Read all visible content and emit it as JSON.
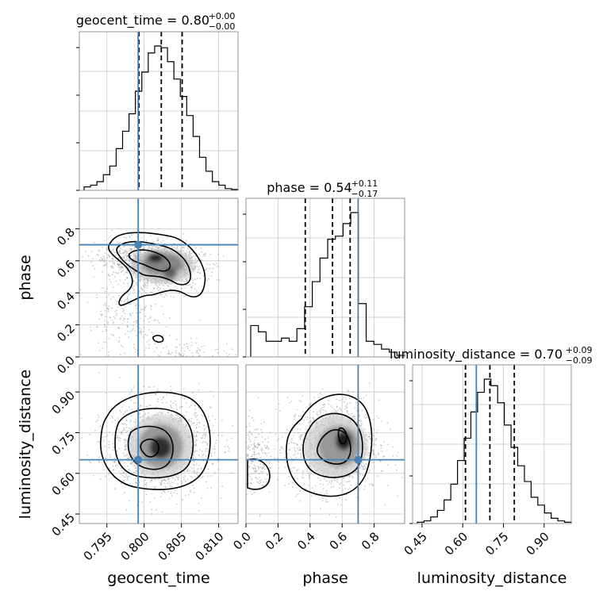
{
  "chart_data": {
    "type": "corner",
    "parameters": [
      "geocent_time",
      "phase",
      "luminosity_distance"
    ],
    "truths": [
      0.7992,
      0.7,
      0.65
    ],
    "truth_color": "#4682b4",
    "titles": [
      {
        "text": "geocent_time = 0.80",
        "sup": "+0.00",
        "sub": "−0.00"
      },
      {
        "text": "phase = 0.54",
        "sup": "+0.11",
        "sub": "−0.17"
      },
      {
        "text": "luminosity_distance = 0.70",
        "sup": "+0.09",
        "sub": "−0.09"
      }
    ],
    "axes": {
      "geocent_time": {
        "range": [
          0.7913,
          0.8126
        ],
        "ticks": [
          0.795,
          0.8,
          0.805,
          0.81
        ],
        "tick_labels": [
          "0.795",
          "0.800",
          "0.805",
          "0.810"
        ]
      },
      "phase": {
        "range": [
          0.0,
          0.99
        ],
        "ticks": [
          0.0,
          0.2,
          0.4,
          0.6,
          0.8
        ],
        "tick_labels": [
          "0.0",
          "0.2",
          "0.4",
          "0.6",
          "0.8"
        ]
      },
      "luminosity_distance": {
        "range": [
          0.415,
          1.0
        ],
        "ticks": [
          0.45,
          0.6,
          0.75,
          0.9
        ],
        "tick_labels": [
          "0.45",
          "0.60",
          "0.75",
          "0.90"
        ]
      }
    },
    "histograms": [
      {
        "param": "geocent_time",
        "quantiles": [
          0.7993,
          0.8023,
          0.8051
        ],
        "counts": [
          2,
          3,
          5,
          9,
          14,
          24,
          34,
          44,
          57,
          68,
          79,
          83,
          82,
          74,
          64,
          54,
          43,
          31,
          19,
          11,
          5,
          3,
          1,
          0.5
        ]
      },
      {
        "param": "phase",
        "quantiles": [
          0.37,
          0.54,
          0.65
        ],
        "counts": [
          20,
          16,
          10,
          10,
          12,
          10,
          18,
          32,
          48,
          63,
          75,
          77,
          85,
          92,
          34,
          10,
          8,
          5,
          3,
          1
        ]
      },
      {
        "param": "luminosity_distance",
        "quantiles": [
          0.61,
          0.7,
          0.79
        ],
        "counts": [
          1,
          2,
          5,
          10,
          18,
          30,
          48,
          65,
          85,
          100,
          110,
          105,
          92,
          75,
          58,
          44,
          32,
          20,
          14,
          8,
          4,
          2,
          1
        ]
      }
    ],
    "grid": true,
    "xlabel_order": [
      "geocent_time",
      "phase",
      "luminosity_distance"
    ],
    "ylabel_order": [
      "phase",
      "luminosity_distance"
    ]
  }
}
